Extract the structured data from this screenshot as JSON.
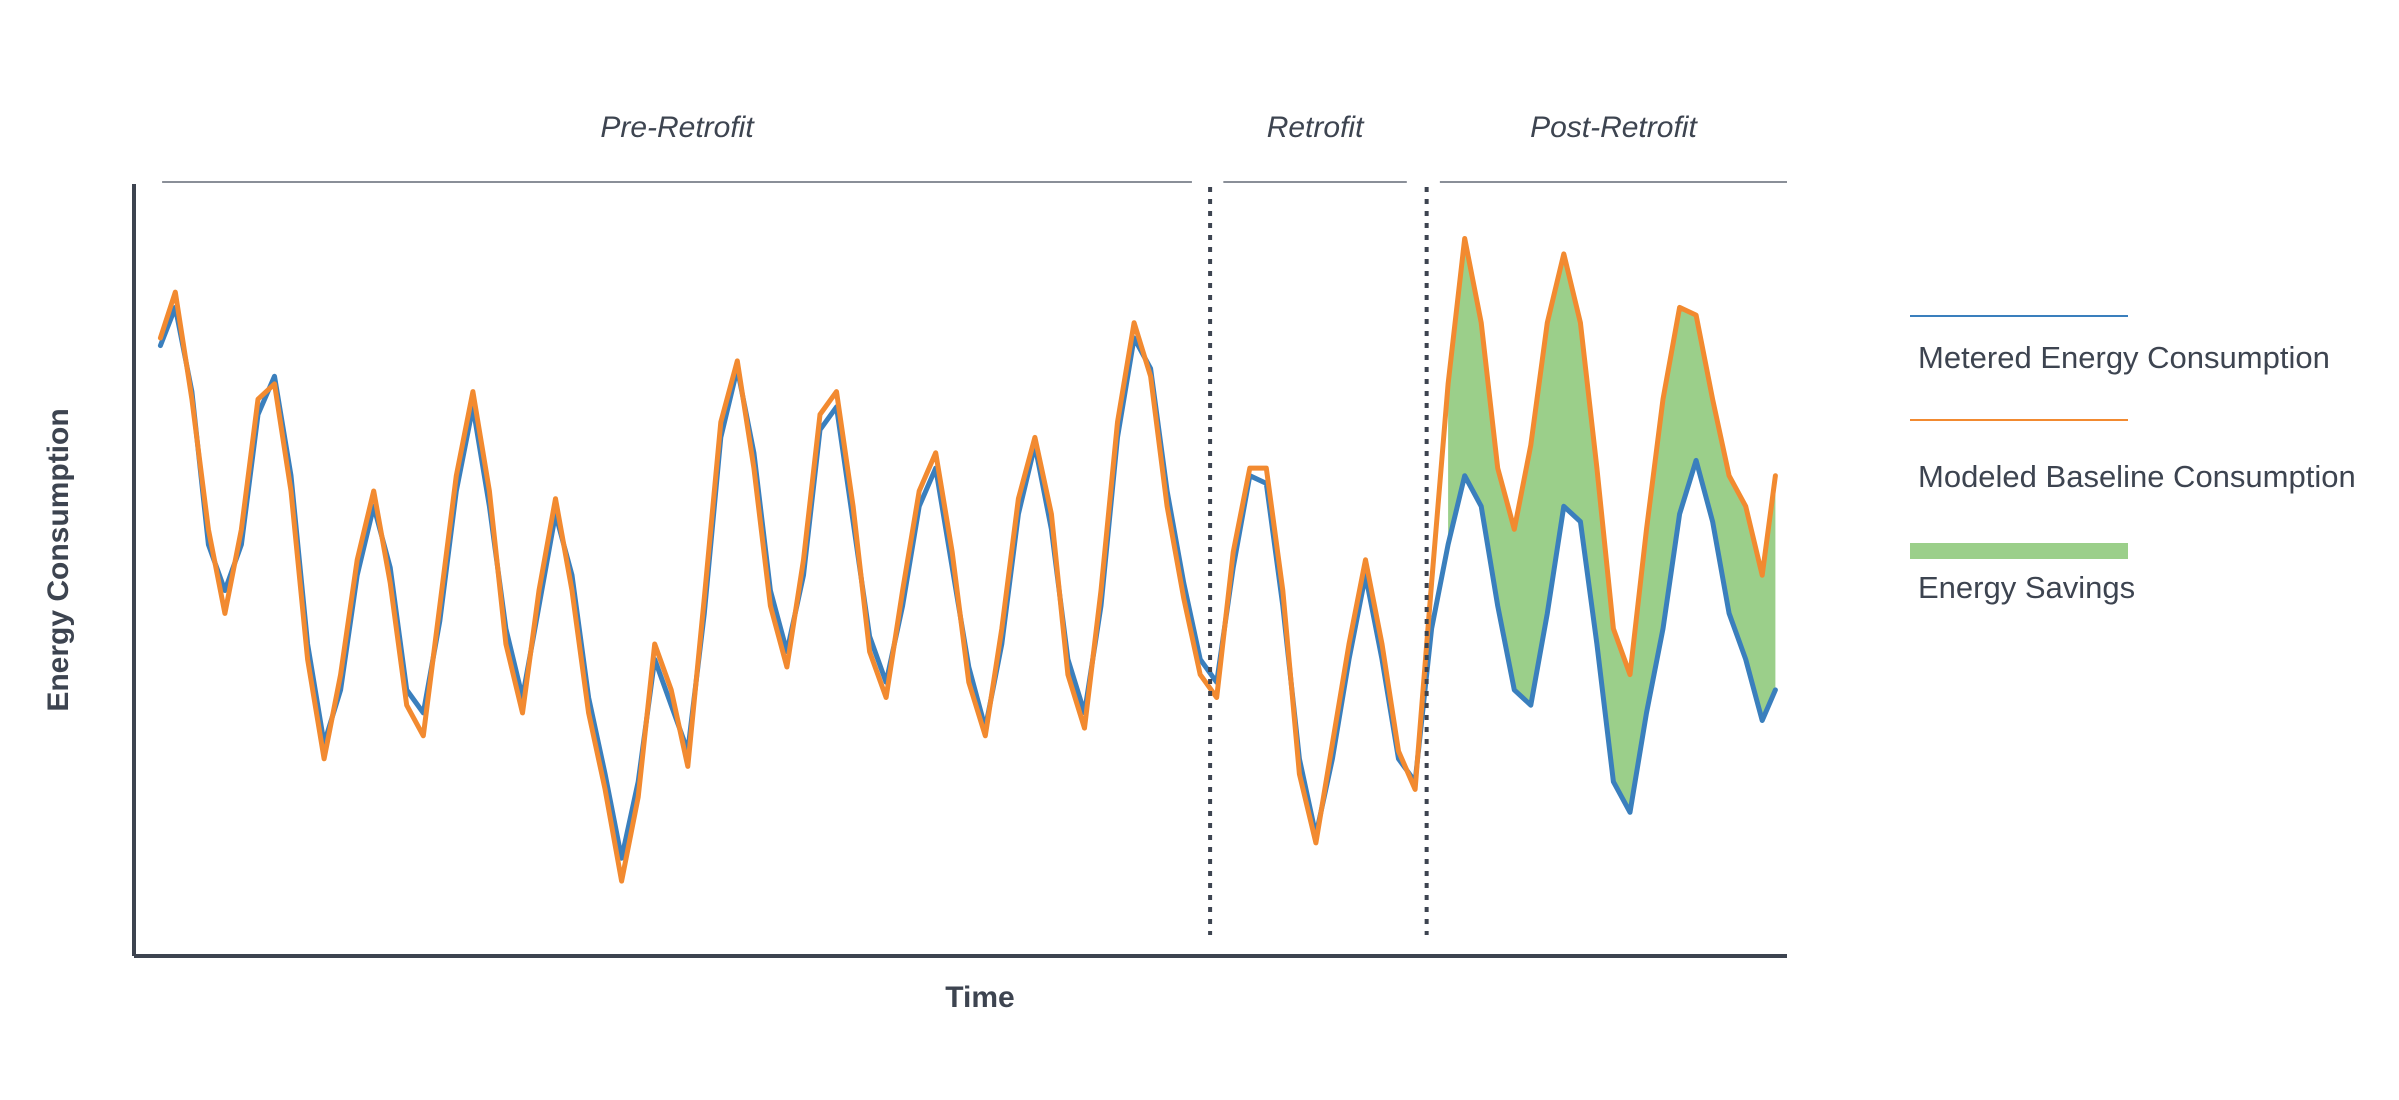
{
  "chart_data": {
    "type": "line",
    "title": "",
    "xlabel": "Time",
    "ylabel": "Energy Consumption",
    "x_ticks_shown": false,
    "y_ticks_shown": false,
    "grid": false,
    "xlim": [
      0,
      1
    ],
    "ylim": [
      0,
      1
    ],
    "phases": [
      {
        "label": "Pre-Retrofit",
        "start": 0.017,
        "end": 0.64
      },
      {
        "label": "Retrofit",
        "start": 0.659,
        "end": 0.77
      },
      {
        "label": "Post-Retrofit",
        "start": 0.79,
        "end": 1.0
      }
    ],
    "phase_dividers": [
      0.651,
      0.782
    ],
    "legend_placement": "right",
    "series": [
      {
        "name": "Metered Energy Consumption",
        "color": "#3a7fbd",
        "x": [
          0.016,
          0.025,
          0.035,
          0.045,
          0.055,
          0.065,
          0.075,
          0.085,
          0.095,
          0.105,
          0.115,
          0.125,
          0.135,
          0.145,
          0.155,
          0.165,
          0.175,
          0.185,
          0.195,
          0.205,
          0.215,
          0.225,
          0.235,
          0.245,
          0.255,
          0.265,
          0.275,
          0.285,
          0.295,
          0.305,
          0.315,
          0.325,
          0.335,
          0.345,
          0.355,
          0.365,
          0.375,
          0.385,
          0.395,
          0.405,
          0.415,
          0.425,
          0.435,
          0.445,
          0.455,
          0.465,
          0.475,
          0.485,
          0.495,
          0.505,
          0.515,
          0.525,
          0.535,
          0.545,
          0.555,
          0.565,
          0.575,
          0.585,
          0.595,
          0.605,
          0.615,
          0.625,
          0.635,
          0.645,
          0.655,
          0.665,
          0.675,
          0.685,
          0.695,
          0.705,
          0.715,
          0.725,
          0.735,
          0.745,
          0.755,
          0.765,
          0.775,
          0.785,
          0.795,
          0.805,
          0.815,
          0.825,
          0.835,
          0.845,
          0.855,
          0.865,
          0.875,
          0.885,
          0.895,
          0.905,
          0.915,
          0.925,
          0.935,
          0.945,
          0.955,
          0.965,
          0.975,
          0.985,
          0.993
        ],
        "y": [
          0.79,
          0.84,
          0.73,
          0.53,
          0.47,
          0.53,
          0.7,
          0.75,
          0.62,
          0.4,
          0.27,
          0.34,
          0.49,
          0.58,
          0.5,
          0.34,
          0.31,
          0.43,
          0.6,
          0.71,
          0.58,
          0.42,
          0.33,
          0.45,
          0.57,
          0.49,
          0.33,
          0.23,
          0.12,
          0.22,
          0.38,
          0.32,
          0.26,
          0.44,
          0.67,
          0.76,
          0.65,
          0.47,
          0.39,
          0.49,
          0.68,
          0.71,
          0.56,
          0.41,
          0.35,
          0.45,
          0.58,
          0.63,
          0.5,
          0.37,
          0.29,
          0.4,
          0.57,
          0.66,
          0.55,
          0.38,
          0.31,
          0.45,
          0.67,
          0.8,
          0.76,
          0.6,
          0.48,
          0.38,
          0.35,
          0.5,
          0.62,
          0.61,
          0.45,
          0.25,
          0.15,
          0.25,
          0.38,
          0.49,
          0.38,
          0.25,
          0.22,
          0.42,
          0.53,
          0.62,
          0.58,
          0.45,
          0.34,
          0.32,
          0.44,
          0.58,
          0.56,
          0.4,
          0.22,
          0.18,
          0.31,
          0.42,
          0.57,
          0.64,
          0.56,
          0.44,
          0.38,
          0.3,
          0.34
        ]
      },
      {
        "name": "Modeled Baseline Consumption",
        "color": "#f28a30",
        "x": [
          0.016,
          0.025,
          0.035,
          0.045,
          0.055,
          0.065,
          0.075,
          0.085,
          0.095,
          0.105,
          0.115,
          0.125,
          0.135,
          0.145,
          0.155,
          0.165,
          0.175,
          0.185,
          0.195,
          0.205,
          0.215,
          0.225,
          0.235,
          0.245,
          0.255,
          0.265,
          0.275,
          0.285,
          0.295,
          0.305,
          0.315,
          0.325,
          0.335,
          0.345,
          0.355,
          0.365,
          0.375,
          0.385,
          0.395,
          0.405,
          0.415,
          0.425,
          0.435,
          0.445,
          0.455,
          0.465,
          0.475,
          0.485,
          0.495,
          0.505,
          0.515,
          0.525,
          0.535,
          0.545,
          0.555,
          0.565,
          0.575,
          0.585,
          0.595,
          0.605,
          0.615,
          0.625,
          0.635,
          0.645,
          0.655,
          0.665,
          0.675,
          0.685,
          0.695,
          0.705,
          0.715,
          0.725,
          0.735,
          0.745,
          0.755,
          0.765,
          0.775,
          0.785,
          0.795,
          0.805,
          0.815,
          0.825,
          0.835,
          0.845,
          0.855,
          0.865,
          0.875,
          0.885,
          0.895,
          0.905,
          0.915,
          0.925,
          0.935,
          0.945,
          0.955,
          0.965,
          0.975,
          0.985,
          0.993
        ],
        "y": [
          0.8,
          0.86,
          0.72,
          0.55,
          0.44,
          0.55,
          0.72,
          0.74,
          0.6,
          0.38,
          0.25,
          0.36,
          0.51,
          0.6,
          0.48,
          0.32,
          0.28,
          0.45,
          0.62,
          0.73,
          0.6,
          0.4,
          0.31,
          0.47,
          0.59,
          0.47,
          0.31,
          0.21,
          0.09,
          0.2,
          0.4,
          0.34,
          0.24,
          0.46,
          0.69,
          0.77,
          0.63,
          0.45,
          0.37,
          0.51,
          0.7,
          0.73,
          0.58,
          0.39,
          0.33,
          0.47,
          0.6,
          0.65,
          0.52,
          0.35,
          0.28,
          0.42,
          0.59,
          0.67,
          0.57,
          0.36,
          0.29,
          0.47,
          0.69,
          0.82,
          0.75,
          0.58,
          0.46,
          0.36,
          0.33,
          0.52,
          0.63,
          0.63,
          0.47,
          0.23,
          0.14,
          0.27,
          0.4,
          0.51,
          0.4,
          0.26,
          0.21,
          0.48,
          0.74,
          0.93,
          0.82,
          0.63,
          0.55,
          0.66,
          0.82,
          0.91,
          0.82,
          0.63,
          0.42,
          0.36,
          0.55,
          0.72,
          0.84,
          0.83,
          0.72,
          0.62,
          0.58,
          0.49,
          0.62
        ]
      }
    ],
    "fill_between": {
      "name": "Energy Savings",
      "color": "#9bcf8a",
      "from_x": 0.79,
      "to_x": 0.993
    }
  }
}
